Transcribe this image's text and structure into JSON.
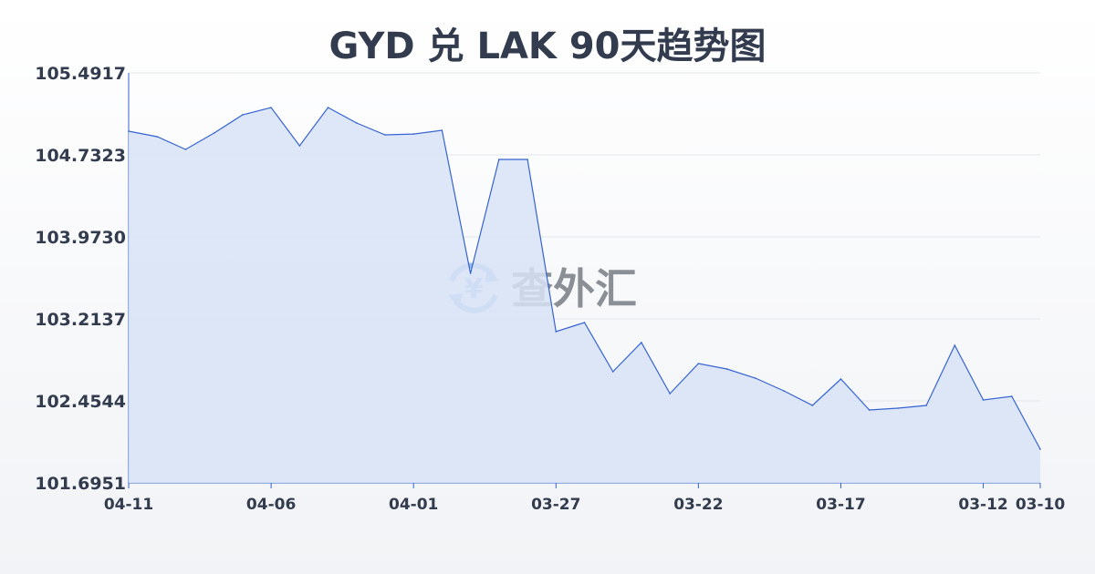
{
  "chart_data": {
    "type": "area",
    "title": "GYD 兑 LAK 90天趋势图",
    "xlabel": "",
    "ylabel": "",
    "ylim": [
      101.6951,
      105.4917
    ],
    "y_ticks": [
      "105.4917",
      "104.7323",
      "103.9730",
      "103.2137",
      "102.4544",
      "101.6951"
    ],
    "x_ticks": [
      "04-11",
      "04-06",
      "04-01",
      "03-27",
      "03-22",
      "03-17",
      "03-12",
      "03-10"
    ],
    "grid": "horizontal",
    "x": [
      "04-11",
      "04-10",
      "04-09",
      "04-08",
      "04-07",
      "04-06",
      "04-05",
      "04-04",
      "04-03",
      "04-02",
      "04-01",
      "03-31",
      "03-30",
      "03-29",
      "03-28",
      "03-27",
      "03-26",
      "03-25",
      "03-24",
      "03-23",
      "03-22",
      "03-21",
      "03-20",
      "03-19",
      "03-18",
      "03-17",
      "03-16",
      "03-15",
      "03-14",
      "03-13",
      "03-12",
      "03-11",
      "03-10"
    ],
    "values": [
      104.952,
      104.901,
      104.783,
      104.935,
      105.104,
      105.171,
      104.817,
      105.171,
      105.028,
      104.918,
      104.926,
      104.96,
      103.636,
      104.69,
      104.69,
      103.096,
      103.18,
      102.725,
      102.995,
      102.522,
      102.8,
      102.75,
      102.665,
      102.547,
      102.412,
      102.657,
      102.37,
      102.387,
      102.412,
      102.969,
      102.463,
      102.497,
      102.007
    ],
    "colors": {
      "line": "#3563d1",
      "fill": "#d8e3f6"
    }
  },
  "watermark": {
    "text": "查外汇",
    "icon": "yen-exchange-icon"
  }
}
